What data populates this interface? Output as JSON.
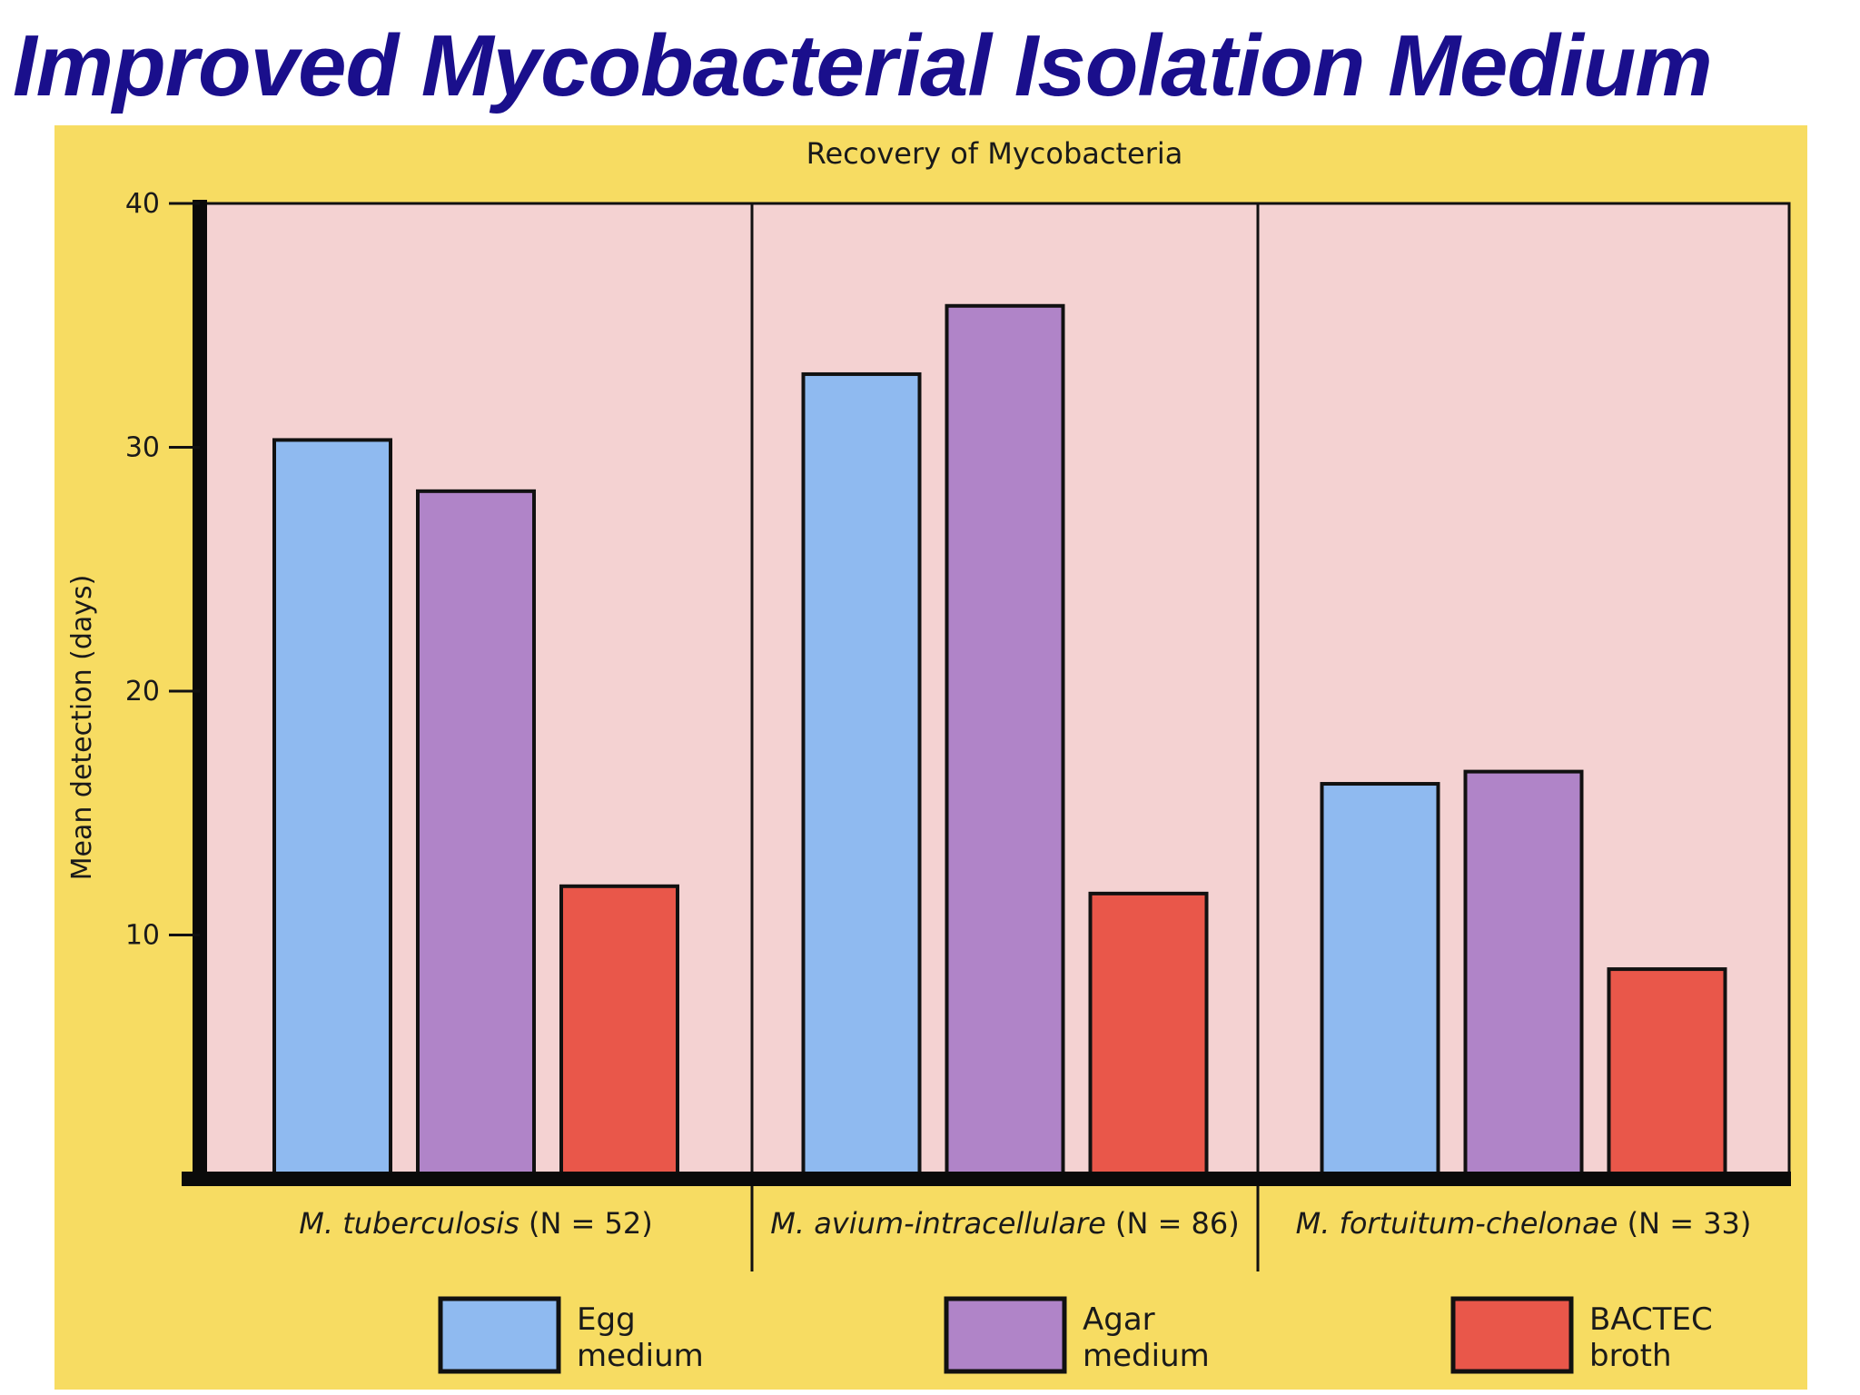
{
  "slide": {
    "title": "Improved Mycobacterial Isolation Medium"
  },
  "chart_data": {
    "type": "bar",
    "title": "Recovery of Mycobacteria",
    "xlabel": "",
    "ylabel": "Mean detection (days)",
    "ylim": [
      0,
      40
    ],
    "yticks": [
      10,
      20,
      30,
      40
    ],
    "grid": false,
    "legend_position": "bottom",
    "categories": [
      {
        "species": "M. tuberculosis",
        "count": "(N = 52)"
      },
      {
        "species": "M. avium-intracellulare",
        "count": "(N = 86)"
      },
      {
        "species": "M. fortuitum-chelonae",
        "count": "(N = 33)"
      }
    ],
    "series": [
      {
        "name": "Egg medium",
        "legend_lines": [
          "Egg",
          "medium"
        ],
        "color": "#8fbaf0",
        "values": [
          30.3,
          33.0,
          16.2
        ]
      },
      {
        "name": "Agar medium",
        "legend_lines": [
          "Agar",
          "medium"
        ],
        "color": "#b084c8",
        "values": [
          28.2,
          35.8,
          16.7
        ]
      },
      {
        "name": "BACTEC broth",
        "legend_lines": [
          "BACTEC",
          "broth"
        ],
        "color": "#e9574a",
        "values": [
          12.0,
          11.7,
          8.6
        ]
      }
    ],
    "colors": {
      "figure_background": "#f7dc62",
      "plot_background": "#f4d2d2",
      "title_color": "#1a0f8c"
    }
  }
}
